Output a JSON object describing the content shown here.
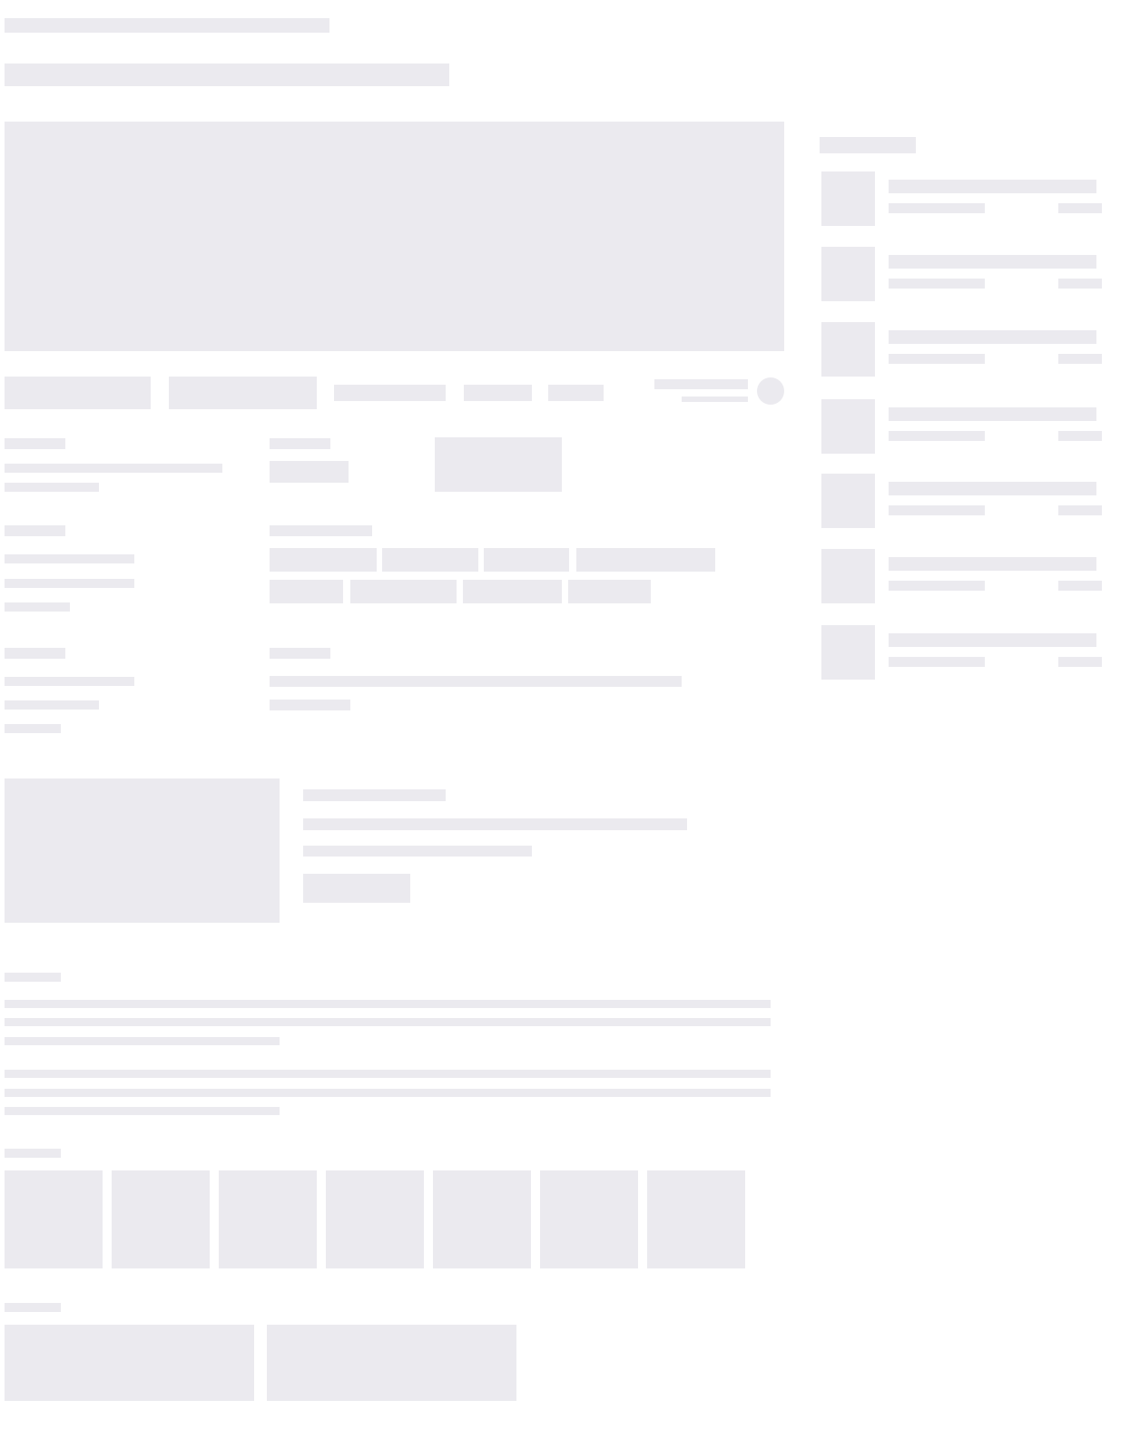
{
  "state": "loading-skeleton",
  "colors": {
    "placeholder": "#ebeaef",
    "background": "#ffffff"
  }
}
